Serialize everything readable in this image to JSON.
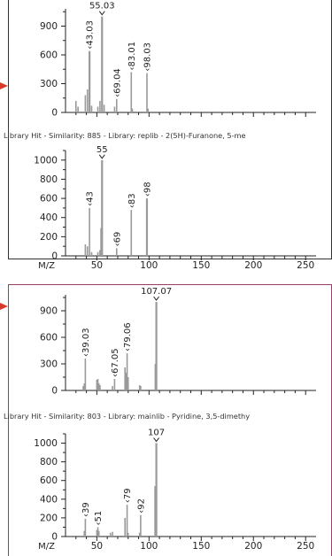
{
  "hits": [
    {
      "text": "Library Hit - Similarity: 885 - Library: replib - 2(5H)-Furanone, 5-me"
    },
    {
      "text": "Library Hit - Similarity: 803 - Library: mainlib - Pyridine, 3,5-dimethy"
    }
  ],
  "colors": {
    "bar": "#9a9a9a",
    "panel1_border": "#333333",
    "panel2_border": "#9b3b6a",
    "arrow": "#d93a2a"
  },
  "chart_data": [
    {
      "id": "p1_measured",
      "type": "bar",
      "xlabel": "",
      "xlim": [
        20,
        260
      ],
      "ylim": [
        0,
        1080
      ],
      "yticks": [
        "0",
        "300",
        "600",
        "900"
      ],
      "xticks": [],
      "peaks": [
        {
          "x": 30,
          "y": 120
        },
        {
          "x": 32,
          "y": 60
        },
        {
          "x": 39,
          "y": 180
        },
        {
          "x": 41,
          "y": 240
        },
        {
          "x": 43,
          "y": 640,
          "label": "43.03"
        },
        {
          "x": 45,
          "y": 70
        },
        {
          "x": 51,
          "y": 60
        },
        {
          "x": 53,
          "y": 120
        },
        {
          "x": 55,
          "y": 1000,
          "label": "55.03"
        },
        {
          "x": 57,
          "y": 80
        },
        {
          "x": 67,
          "y": 60
        },
        {
          "x": 69,
          "y": 140,
          "label": "69.04"
        },
        {
          "x": 83,
          "y": 420,
          "label": "83.01"
        },
        {
          "x": 84,
          "y": 40
        },
        {
          "x": 98,
          "y": 410,
          "label": "98.03"
        },
        {
          "x": 99,
          "y": 40
        }
      ]
    },
    {
      "id": "p1_library",
      "type": "bar",
      "xlabel": "M/Z",
      "xlim": [
        20,
        260
      ],
      "ylim": [
        0,
        1100
      ],
      "yticks": [
        "0",
        "200",
        "400",
        "600",
        "800",
        "1000"
      ],
      "xticks": [
        "50",
        "100",
        "150",
        "200",
        "250"
      ],
      "peaks": [
        {
          "x": 39,
          "y": 120
        },
        {
          "x": 41,
          "y": 100
        },
        {
          "x": 43,
          "y": 500,
          "label": "43"
        },
        {
          "x": 45,
          "y": 40
        },
        {
          "x": 51,
          "y": 40
        },
        {
          "x": 53,
          "y": 60
        },
        {
          "x": 54,
          "y": 290
        },
        {
          "x": 55,
          "y": 1000,
          "label": "55"
        },
        {
          "x": 69,
          "y": 80,
          "label": "69"
        },
        {
          "x": 83,
          "y": 480,
          "label": "83"
        },
        {
          "x": 98,
          "y": 600,
          "label": "98"
        }
      ]
    },
    {
      "id": "p2_measured",
      "type": "bar",
      "xlabel": "",
      "xlim": [
        20,
        260
      ],
      "ylim": [
        0,
        1080
      ],
      "yticks": [
        "0",
        "300",
        "600",
        "900"
      ],
      "xticks": [],
      "peaks": [
        {
          "x": 37,
          "y": 50
        },
        {
          "x": 38,
          "y": 80
        },
        {
          "x": 39,
          "y": 360,
          "label": "39.03"
        },
        {
          "x": 50,
          "y": 120
        },
        {
          "x": 51,
          "y": 130
        },
        {
          "x": 52,
          "y": 80
        },
        {
          "x": 53,
          "y": 60
        },
        {
          "x": 65,
          "y": 50
        },
        {
          "x": 67,
          "y": 130,
          "label": "67.05"
        },
        {
          "x": 77,
          "y": 260
        },
        {
          "x": 78,
          "y": 200
        },
        {
          "x": 79,
          "y": 420,
          "label": "79.06"
        },
        {
          "x": 80,
          "y": 150
        },
        {
          "x": 91,
          "y": 60
        },
        {
          "x": 92,
          "y": 50
        },
        {
          "x": 106,
          "y": 300
        },
        {
          "x": 107,
          "y": 1000,
          "label": "107.07"
        }
      ]
    },
    {
      "id": "p2_library",
      "type": "bar",
      "xlabel": "M/Z",
      "xlim": [
        20,
        260
      ],
      "ylim": [
        0,
        1100
      ],
      "yticks": [
        "0",
        "200",
        "400",
        "600",
        "800",
        "1000"
      ],
      "xticks": [
        "50",
        "100",
        "150",
        "200",
        "250"
      ],
      "peaks": [
        {
          "x": 38,
          "y": 60
        },
        {
          "x": 39,
          "y": 190,
          "label": "39"
        },
        {
          "x": 50,
          "y": 70
        },
        {
          "x": 51,
          "y": 100,
          "label": "51"
        },
        {
          "x": 52,
          "y": 60
        },
        {
          "x": 63,
          "y": 40
        },
        {
          "x": 65,
          "y": 50
        },
        {
          "x": 77,
          "y": 200
        },
        {
          "x": 79,
          "y": 340,
          "label": "79"
        },
        {
          "x": 80,
          "y": 40
        },
        {
          "x": 91,
          "y": 40
        },
        {
          "x": 92,
          "y": 230,
          "label": "92"
        },
        {
          "x": 106,
          "y": 540
        },
        {
          "x": 107,
          "y": 1000,
          "label": "107"
        }
      ]
    }
  ]
}
